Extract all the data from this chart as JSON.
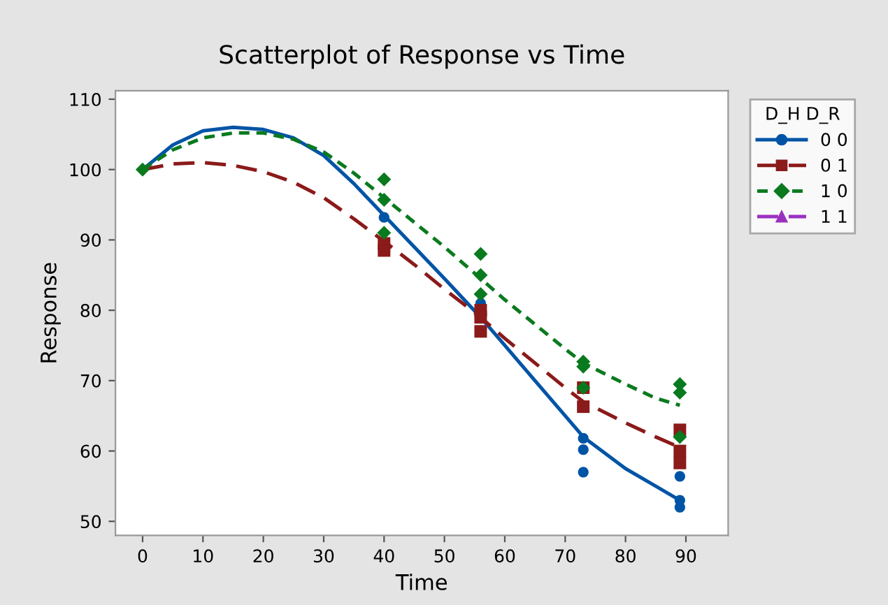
{
  "chart_data": {
    "type": "scatter",
    "title": "Scatterplot of Response vs Time",
    "xlabel": "Time",
    "ylabel": "Response",
    "legend_title": "D_H D_R",
    "legend": "top right",
    "grid": false,
    "xlim": [
      -4.5,
      97
    ],
    "ylim": [
      48,
      111.2
    ],
    "xticks": [
      0,
      10,
      20,
      30,
      40,
      50,
      60,
      70,
      80,
      90
    ],
    "yticks": [
      50,
      60,
      70,
      80,
      90,
      100,
      110
    ],
    "series": [
      {
        "name": "0 0",
        "color": "#0054a6",
        "marker": "circle",
        "line_style": "solid",
        "x": [
          40,
          56,
          73,
          73,
          73,
          89,
          89,
          89
        ],
        "values": [
          93.2,
          81,
          61.8,
          60.2,
          57,
          56.4,
          53,
          52
        ]
      },
      {
        "name": "0 1",
        "color": "#8b1a1a",
        "marker": "square",
        "line_style": "dashed",
        "x": [
          40,
          40,
          56,
          56,
          56,
          73,
          73,
          89,
          89,
          89
        ],
        "values": [
          89.5,
          88.5,
          80,
          79,
          77,
          69,
          66.3,
          63,
          60,
          58.3
        ]
      },
      {
        "name": "1 0",
        "color": "#0a7a1e",
        "marker": "diamond",
        "line_style": "dotted",
        "x": [
          0,
          40,
          40,
          40,
          56,
          56,
          56,
          73,
          73,
          73,
          89,
          89,
          89
        ],
        "values": [
          100,
          98.6,
          95.7,
          91,
          88,
          85,
          82.3,
          72.7,
          72,
          69,
          69.5,
          68.3,
          62
        ]
      },
      {
        "name": "1 1",
        "color": "#9b30c0",
        "marker": "triangle",
        "line_style": "dashed"
      },
      {
        "type": "line",
        "color": "#0054a6",
        "line_style": "solid",
        "x": [
          0,
          5,
          10,
          15,
          20,
          25,
          30,
          35,
          40,
          45,
          50,
          56,
          60,
          65,
          70,
          73,
          80,
          85,
          89
        ],
        "values": [
          100,
          103.5,
          105.5,
          106,
          105.7,
          104.5,
          102,
          98,
          93.5,
          89,
          84.5,
          79,
          75,
          70,
          65,
          62,
          57.5,
          55,
          53
        ]
      },
      {
        "type": "line",
        "color": "#8b1a1a",
        "line_style": "dashed",
        "x": [
          0,
          5,
          10,
          15,
          20,
          25,
          30,
          35,
          40,
          45,
          50,
          56,
          60,
          65,
          70,
          73,
          80,
          85,
          89
        ],
        "values": [
          100,
          100.8,
          101,
          100.6,
          99.7,
          98.2,
          96,
          93,
          89.8,
          86.5,
          83,
          79,
          76,
          72.5,
          69,
          67,
          64,
          62,
          60.5
        ]
      },
      {
        "type": "line",
        "color": "#0a7a1e",
        "line_style": "dotted",
        "x": [
          0,
          5,
          10,
          15,
          20,
          25,
          30,
          35,
          40,
          45,
          50,
          56,
          60,
          65,
          70,
          73,
          80,
          85,
          89
        ],
        "values": [
          100,
          102.8,
          104.5,
          105.2,
          105.2,
          104.3,
          102.5,
          99.5,
          96,
          92.5,
          89,
          84.5,
          81.5,
          78,
          74.5,
          72.5,
          69.5,
          67.5,
          66.5
        ]
      }
    ]
  }
}
